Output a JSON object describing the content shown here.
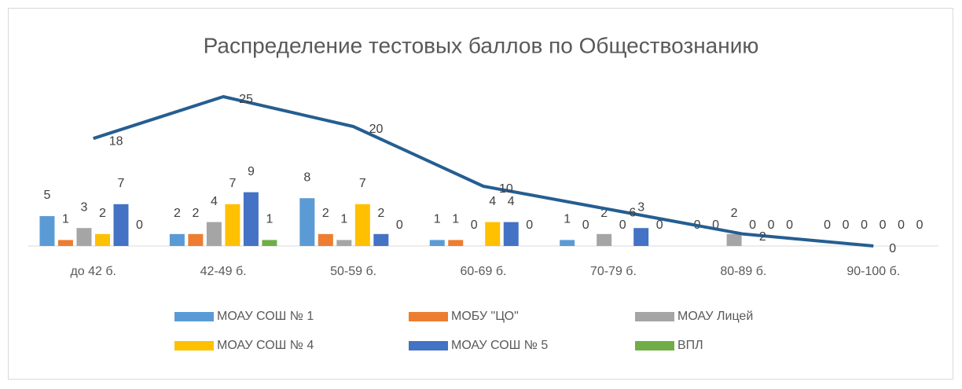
{
  "chart_data": {
    "type": "bar",
    "title": "Распределение тестовых баллов по Обществознанию",
    "categories": [
      "до 42 б.",
      "42-49 б.",
      "50-59 б.",
      "60-69 б.",
      "70-79 б.",
      "80-89 б.",
      "90-100 б."
    ],
    "series": [
      {
        "name": "МОАУ СОШ № 1",
        "color": "#5b9bd5",
        "values": [
          5,
          2,
          8,
          1,
          1,
          0,
          0
        ]
      },
      {
        "name": "МОБУ \"ЦО\"",
        "color": "#ed7d31",
        "values": [
          1,
          2,
          2,
          1,
          0,
          0,
          0
        ]
      },
      {
        "name": "МОАУ Лицей",
        "color": "#a5a5a5",
        "values": [
          3,
          4,
          1,
          0,
          2,
          2,
          0
        ]
      },
      {
        "name": "МОАУ СОШ № 4",
        "color": "#ffc000",
        "values": [
          2,
          7,
          7,
          4,
          0,
          0,
          0
        ]
      },
      {
        "name": "МОАУ СОШ № 5",
        "color": "#4472c4",
        "values": [
          7,
          9,
          2,
          4,
          3,
          0,
          0
        ]
      },
      {
        "name": "ВПЛ",
        "color": "#70ad47",
        "values": [
          0,
          1,
          0,
          0,
          0,
          0,
          0
        ]
      }
    ],
    "line": {
      "type": "line",
      "color": "#255e91",
      "values": [
        18,
        25,
        20,
        10,
        6,
        2,
        0
      ]
    }
  }
}
